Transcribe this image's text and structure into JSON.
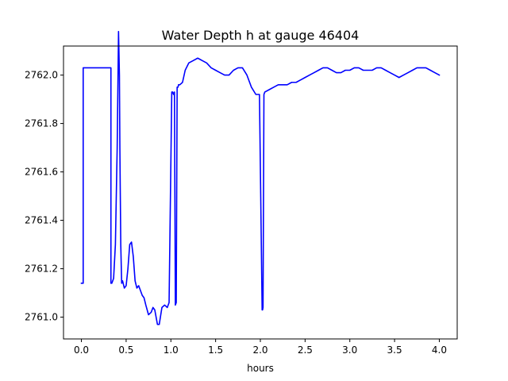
{
  "chart_data": {
    "type": "line",
    "title": "Water Depth h at gauge 46404",
    "xlabel": "hours",
    "ylabel": "",
    "xlim": [
      -0.2,
      4.2
    ],
    "ylim": [
      2760.91,
      2762.12
    ],
    "xticks": [
      0.0,
      0.5,
      1.0,
      1.5,
      2.0,
      2.5,
      3.0,
      3.5,
      4.0
    ],
    "xtick_labels": [
      "0.0",
      "0.5",
      "1.0",
      "1.5",
      "2.0",
      "2.5",
      "3.0",
      "3.5",
      "4.0"
    ],
    "yticks": [
      2761.0,
      2761.2,
      2761.4,
      2761.6,
      2761.8,
      2762.0
    ],
    "ytick_labels": [
      "2761.0",
      "2761.2",
      "2761.4",
      "2761.6",
      "2761.8",
      "2762.0"
    ],
    "grid": false,
    "legend": false,
    "series": [
      {
        "color": "#0000ff",
        "x": [
          0.0,
          0.02,
          0.02,
          0.05,
          0.1,
          0.2,
          0.3,
          0.33,
          0.33,
          0.34,
          0.36,
          0.38,
          0.4,
          0.415,
          0.425,
          0.43,
          0.44,
          0.45,
          0.46,
          0.48,
          0.5,
          0.52,
          0.54,
          0.56,
          0.58,
          0.6,
          0.62,
          0.64,
          0.66,
          0.68,
          0.7,
          0.72,
          0.75,
          0.78,
          0.8,
          0.82,
          0.85,
          0.87,
          0.9,
          0.93,
          0.96,
          0.98,
          1.01,
          1.02,
          1.03,
          1.04,
          1.05,
          1.06,
          1.07,
          1.08,
          1.085,
          1.09,
          1.1,
          1.13,
          1.16,
          1.2,
          1.25,
          1.3,
          1.35,
          1.4,
          1.45,
          1.5,
          1.55,
          1.6,
          1.65,
          1.7,
          1.75,
          1.8,
          1.85,
          1.9,
          1.95,
          1.99,
          2.02,
          2.025,
          2.03,
          2.04,
          2.05,
          2.1,
          2.15,
          2.2,
          2.25,
          2.3,
          2.35,
          2.4,
          2.45,
          2.5,
          2.55,
          2.6,
          2.65,
          2.7,
          2.75,
          2.8,
          2.85,
          2.9,
          2.95,
          3.0,
          3.05,
          3.1,
          3.15,
          3.2,
          3.25,
          3.3,
          3.35,
          3.4,
          3.45,
          3.5,
          3.55,
          3.6,
          3.65,
          3.7,
          3.75,
          3.8,
          3.85,
          3.9,
          3.95,
          4.0
        ],
        "y": [
          2761.14,
          2761.14,
          2762.03,
          2762.03,
          2762.03,
          2762.03,
          2762.03,
          2762.03,
          2761.14,
          2761.14,
          2761.16,
          2761.3,
          2761.7,
          2762.18,
          2762.0,
          2761.7,
          2761.3,
          2761.14,
          2761.15,
          2761.12,
          2761.13,
          2761.2,
          2761.3,
          2761.31,
          2761.25,
          2761.15,
          2761.12,
          2761.13,
          2761.11,
          2761.09,
          2761.08,
          2761.05,
          2761.01,
          2761.02,
          2761.04,
          2761.03,
          2760.97,
          2760.97,
          2761.04,
          2761.05,
          2761.04,
          2761.06,
          2761.93,
          2761.93,
          2761.92,
          2761.93,
          2761.05,
          2761.06,
          2761.95,
          2761.95,
          2761.96,
          2761.96,
          2761.96,
          2761.97,
          2762.02,
          2762.05,
          2762.06,
          2762.07,
          2762.06,
          2762.05,
          2762.03,
          2762.02,
          2762.01,
          2762.0,
          2762.0,
          2762.02,
          2762.03,
          2762.03,
          2762.0,
          2761.95,
          2761.92,
          2761.92,
          2761.03,
          2761.03,
          2761.04,
          2761.92,
          2761.93,
          2761.94,
          2761.95,
          2761.96,
          2761.96,
          2761.96,
          2761.97,
          2761.97,
          2761.98,
          2761.99,
          2762.0,
          2762.01,
          2762.02,
          2762.03,
          2762.03,
          2762.02,
          2762.01,
          2762.01,
          2762.02,
          2762.02,
          2762.03,
          2762.03,
          2762.02,
          2762.02,
          2762.02,
          2762.03,
          2762.03,
          2762.02,
          2762.01,
          2762.0,
          2761.99,
          2762.0,
          2762.01,
          2762.02,
          2762.03,
          2762.03,
          2762.03,
          2762.02,
          2762.01,
          2762.0
        ]
      }
    ]
  }
}
